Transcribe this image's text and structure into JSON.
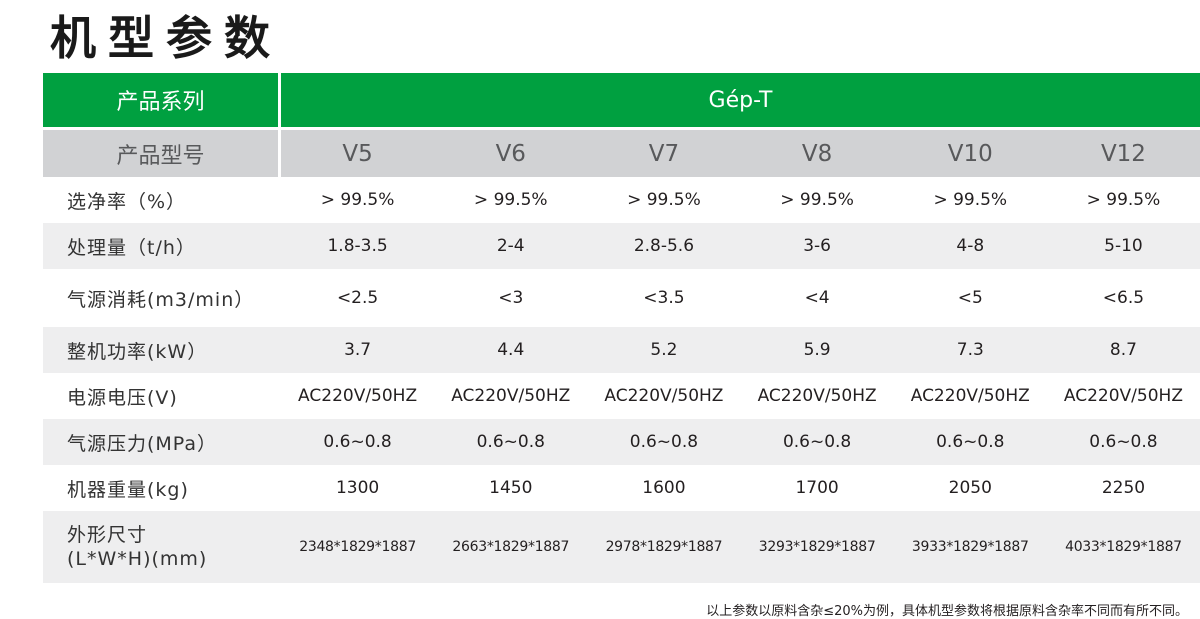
{
  "title": "机型参数",
  "series": {
    "label": "产品系列",
    "value": "Gép-T"
  },
  "model_row": {
    "label": "产品型号",
    "models": [
      "V5",
      "V6",
      "V7",
      "V8",
      "V10",
      "V12"
    ]
  },
  "rows": [
    {
      "label": "选净率（%）",
      "values": [
        "> 99.5%",
        "> 99.5%",
        "> 99.5%",
        "> 99.5%",
        "> 99.5%",
        "> 99.5%"
      ]
    },
    {
      "label": "处理量（t/h）",
      "values": [
        "1.8-3.5",
        "2-4",
        "2.8-5.6",
        "3-6",
        "4-8",
        "5-10"
      ]
    },
    {
      "label": "气源消耗(m3/min）",
      "values": [
        "<2.5",
        "<3",
        "<3.5",
        "<4",
        "<5",
        "<6.5"
      ]
    },
    {
      "label": "整机功率(kW）",
      "values": [
        "3.7",
        "4.4",
        "5.2",
        "5.9",
        "7.3",
        "8.7"
      ]
    },
    {
      "label": "电源电压(V)",
      "values": [
        "AC220V/50HZ",
        "AC220V/50HZ",
        "AC220V/50HZ",
        "AC220V/50HZ",
        "AC220V/50HZ",
        "AC220V/50HZ"
      ]
    },
    {
      "label": "气源压力(MPa）",
      "values": [
        "0.6~0.8",
        "0.6~0.8",
        "0.6~0.8",
        "0.6~0.8",
        "0.6~0.8",
        "0.6~0.8"
      ]
    },
    {
      "label": "机器重量(kg)",
      "values": [
        "1300",
        "1450",
        "1600",
        "1700",
        "2050",
        "2250"
      ]
    },
    {
      "label_line1": "外形尺寸",
      "label_line2": "(L*W*H)(mm)",
      "values": [
        "2348*1829*1887",
        "2663*1829*1887",
        "2978*1829*1887",
        "3293*1829*1887",
        "3933*1829*1887",
        "4033*1829*1887"
      ]
    }
  ],
  "footnote": "以上参数以原料含杂≤20%为例，具体机型参数将根据原料含杂率不同而有所不同。",
  "colors": {
    "header_green": "#00a040",
    "model_gray": "#d1d2d4",
    "row_shade": "#eeeeef"
  }
}
